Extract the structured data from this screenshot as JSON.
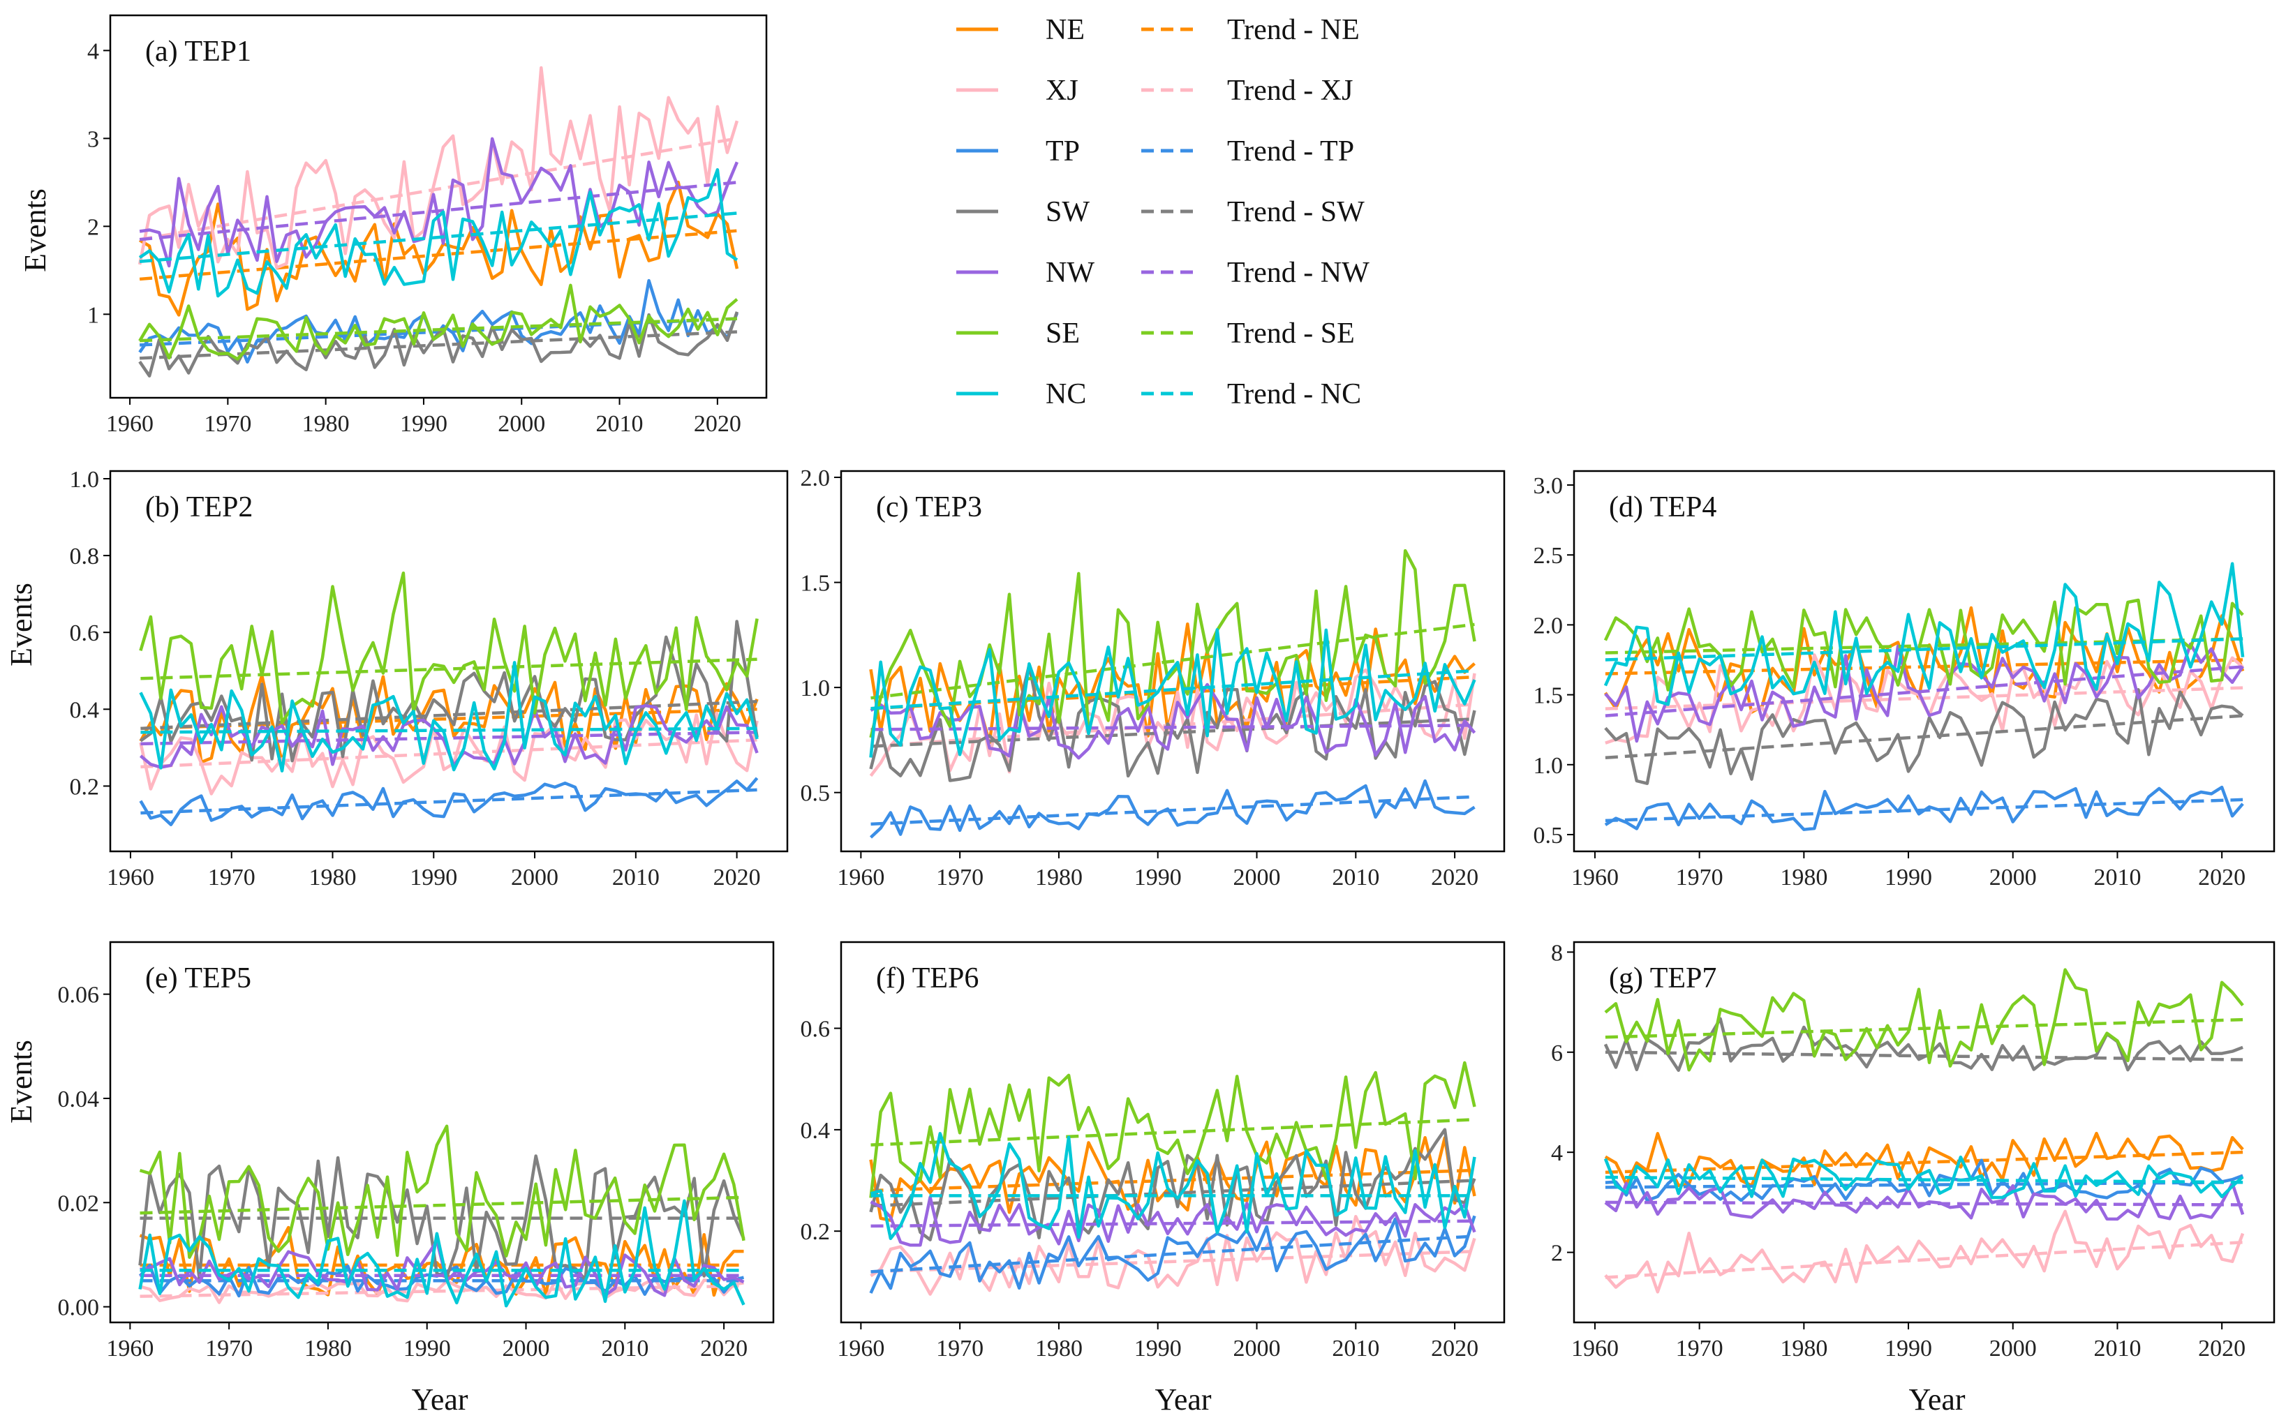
{
  "chart_data": {
    "type": "line",
    "xlabel": "Year",
    "ylabel": "Events",
    "x_range": [
      1961,
      2022
    ],
    "x_ticks": [
      1960,
      1970,
      1980,
      1990,
      2000,
      2010,
      2020
    ],
    "legend": [
      {
        "key": "NE",
        "label": "NE",
        "trend_label": "Trend - NE",
        "color": "#ff8c00"
      },
      {
        "key": "XJ",
        "label": "XJ",
        "trend_label": "Trend - XJ",
        "color": "#ffb6c1"
      },
      {
        "key": "TP",
        "label": "TP",
        "trend_label": "Trend - TP",
        "color": "#3a8ee6"
      },
      {
        "key": "SW",
        "label": "SW",
        "trend_label": "Trend - SW",
        "color": "#808080"
      },
      {
        "key": "NW",
        "label": "NW",
        "trend_label": "Trend - NW",
        "color": "#9966e0"
      },
      {
        "key": "SE",
        "label": "SE",
        "trend_label": "Trend - SE",
        "color": "#7ccd21"
      },
      {
        "key": "NC",
        "label": "NC",
        "trend_label": "Trend - NC",
        "color": "#00c8d7"
      }
    ],
    "panels": [
      {
        "id": "a",
        "title": "(a) TEP1",
        "y_ticks": [
          1,
          2,
          3,
          4
        ],
        "ylim": [
          0.05,
          4.4
        ],
        "series": {
          "NE": {
            "base": 1.65,
            "amp": 0.45,
            "trend": [
              1.4,
              1.95
            ]
          },
          "XJ": {
            "base": 2.0,
            "amp": 0.6,
            "trend": [
              1.85,
              3.0
            ]
          },
          "TP": {
            "base": 0.75,
            "amp": 0.25,
            "trend": [
              0.65,
              0.95
            ]
          },
          "SW": {
            "base": 0.6,
            "amp": 0.25,
            "trend": [
              0.5,
              0.8
            ]
          },
          "NW": {
            "base": 2.1,
            "amp": 0.4,
            "trend": [
              1.85,
              2.5
            ]
          },
          "SE": {
            "base": 0.8,
            "amp": 0.25,
            "trend": [
              0.7,
              0.95
            ]
          },
          "NC": {
            "base": 1.8,
            "amp": 0.55,
            "trend": [
              1.6,
              2.15
            ]
          }
        }
      },
      {
        "id": "b",
        "title": "(b) TEP2",
        "y_ticks": [
          0.2,
          0.4,
          0.6,
          0.8,
          1.0
        ],
        "ylim": [
          0.03,
          1.02
        ],
        "series": {
          "NE": {
            "base": 0.36,
            "amp": 0.1,
            "trend": [
              0.35,
              0.4
            ]
          },
          "XJ": {
            "base": 0.25,
            "amp": 0.08,
            "trend": [
              0.25,
              0.32
            ]
          },
          "TP": {
            "base": 0.15,
            "amp": 0.04,
            "trend": [
              0.13,
              0.19
            ]
          },
          "SW": {
            "base": 0.38,
            "amp": 0.11,
            "trend": [
              0.35,
              0.42
            ]
          },
          "NW": {
            "base": 0.32,
            "amp": 0.08,
            "trend": [
              0.31,
              0.34
            ]
          },
          "SE": {
            "base": 0.5,
            "amp": 0.13,
            "trend": [
              0.48,
              0.53
            ]
          },
          "NC": {
            "base": 0.35,
            "amp": 0.11,
            "trend": [
              0.34,
              0.35
            ]
          }
        }
      },
      {
        "id": "c",
        "title": "(c) TEP3",
        "y_ticks": [
          0.5,
          1.0,
          1.5,
          2.0
        ],
        "ylim": [
          0.22,
          2.03
        ],
        "series": {
          "NE": {
            "base": 0.95,
            "amp": 0.2,
            "trend": [
              0.9,
              1.05
            ]
          },
          "XJ": {
            "base": 0.78,
            "amp": 0.18,
            "trend": [
              0.72,
              0.92
            ]
          },
          "TP": {
            "base": 0.42,
            "amp": 0.08,
            "trend": [
              0.35,
              0.48
            ]
          },
          "SW": {
            "base": 0.78,
            "amp": 0.2,
            "trend": [
              0.72,
              0.85
            ]
          },
          "NW": {
            "base": 0.8,
            "amp": 0.15,
            "trend": [
              0.8,
              0.82
            ]
          },
          "SE": {
            "base": 1.1,
            "amp": 0.3,
            "trend": [
              0.95,
              1.3
            ]
          },
          "NC": {
            "base": 1.0,
            "amp": 0.25,
            "trend": [
              0.9,
              1.08
            ]
          }
        }
      },
      {
        "id": "d",
        "title": "(d) TEP4",
        "y_ticks": [
          0.5,
          1.0,
          1.5,
          2.0,
          2.5,
          3.0
        ],
        "ylim": [
          0.38,
          3.1
        ],
        "series": {
          "NE": {
            "base": 1.7,
            "amp": 0.3,
            "trend": [
              1.65,
              1.75
            ]
          },
          "XJ": {
            "base": 1.45,
            "amp": 0.25,
            "trend": [
              1.4,
              1.55
            ]
          },
          "TP": {
            "base": 0.68,
            "amp": 0.12,
            "trend": [
              0.6,
              0.75
            ]
          },
          "SW": {
            "base": 1.15,
            "amp": 0.25,
            "trend": [
              1.05,
              1.35
            ]
          },
          "NW": {
            "base": 1.5,
            "amp": 0.2,
            "trend": [
              1.35,
              1.7
            ]
          },
          "SE": {
            "base": 1.85,
            "amp": 0.3,
            "trend": [
              1.8,
              1.9
            ]
          },
          "NC": {
            "base": 1.8,
            "amp": 0.35,
            "trend": [
              1.75,
              1.9
            ]
          }
        }
      },
      {
        "id": "e",
        "title": "(e) TEP5",
        "y_ticks": [
          0.0,
          0.02,
          0.04,
          0.06
        ],
        "ylim": [
          -0.003,
          0.07
        ],
        "series": {
          "NE": {
            "base": 0.008,
            "amp": 0.006,
            "trend": [
              0.008,
              0.008
            ]
          },
          "XJ": {
            "base": 0.003,
            "amp": 0.002,
            "trend": [
              0.002,
              0.004
            ]
          },
          "TP": {
            "base": 0.005,
            "amp": 0.003,
            "trend": [
              0.005,
              0.005
            ]
          },
          "SW": {
            "base": 0.017,
            "amp": 0.012,
            "trend": [
              0.017,
              0.017
            ]
          },
          "NW": {
            "base": 0.006,
            "amp": 0.004,
            "trend": [
              0.006,
              0.006
            ]
          },
          "SE": {
            "base": 0.02,
            "amp": 0.012,
            "trend": [
              0.018,
              0.021
            ]
          },
          "NC": {
            "base": 0.008,
            "amp": 0.007,
            "trend": [
              0.007,
              0.007
            ]
          }
        }
      },
      {
        "id": "f",
        "title": "(f) TEP6",
        "y_ticks": [
          0.2,
          0.4,
          0.6
        ],
        "ylim": [
          0.02,
          0.77
        ],
        "series": {
          "NE": {
            "base": 0.3,
            "amp": 0.07,
            "trend": [
              0.28,
              0.32
            ]
          },
          "XJ": {
            "base": 0.13,
            "amp": 0.05,
            "trend": [
              0.12,
              0.16
            ]
          },
          "TP": {
            "base": 0.16,
            "amp": 0.05,
            "trend": [
              0.12,
              0.19
            ]
          },
          "SW": {
            "base": 0.27,
            "amp": 0.08,
            "trend": [
              0.25,
              0.3
            ]
          },
          "NW": {
            "base": 0.22,
            "amp": 0.04,
            "trend": [
              0.21,
              0.22
            ]
          },
          "SE": {
            "base": 0.4,
            "amp": 0.12,
            "trend": [
              0.37,
              0.42
            ]
          },
          "NC": {
            "base": 0.28,
            "amp": 0.09,
            "trend": [
              0.27,
              0.27
            ]
          }
        }
      },
      {
        "id": "g",
        "title": "(g) TEP7",
        "y_ticks": [
          2,
          4,
          6,
          8
        ],
        "ylim": [
          0.6,
          8.2
        ],
        "series": {
          "NE": {
            "base": 3.8,
            "amp": 0.4,
            "trend": [
              3.6,
              4.0
            ]
          },
          "XJ": {
            "base": 1.8,
            "amp": 0.4,
            "trend": [
              1.5,
              2.2
            ]
          },
          "TP": {
            "base": 3.3,
            "amp": 0.3,
            "trend": [
              3.3,
              3.4
            ]
          },
          "SW": {
            "base": 5.9,
            "amp": 0.35,
            "trend": [
              6.0,
              5.85
            ]
          },
          "NW": {
            "base": 3.0,
            "amp": 0.3,
            "trend": [
              3.0,
              2.95
            ]
          },
          "SE": {
            "base": 6.4,
            "amp": 0.8,
            "trend": [
              6.3,
              6.65
            ]
          },
          "NC": {
            "base": 3.4,
            "amp": 0.4,
            "trend": [
              3.5,
              3.4
            ]
          }
        }
      }
    ]
  }
}
